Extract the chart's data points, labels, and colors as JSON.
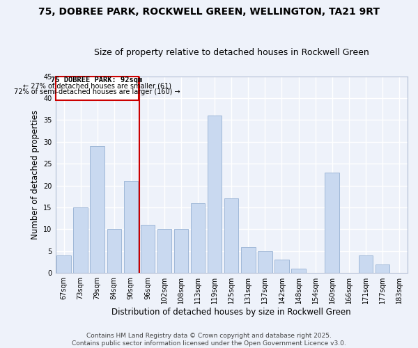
{
  "title": "75, DOBREE PARK, ROCKWELL GREEN, WELLINGTON, TA21 9RT",
  "subtitle": "Size of property relative to detached houses in Rockwell Green",
  "xlabel": "Distribution of detached houses by size in Rockwell Green",
  "ylabel": "Number of detached properties",
  "bin_labels": [
    "67sqm",
    "73sqm",
    "79sqm",
    "84sqm",
    "90sqm",
    "96sqm",
    "102sqm",
    "108sqm",
    "113sqm",
    "119sqm",
    "125sqm",
    "131sqm",
    "137sqm",
    "142sqm",
    "148sqm",
    "154sqm",
    "160sqm",
    "166sqm",
    "171sqm",
    "177sqm",
    "183sqm"
  ],
  "values": [
    4,
    15,
    29,
    10,
    21,
    11,
    10,
    10,
    16,
    36,
    17,
    6,
    5,
    3,
    1,
    0,
    23,
    0,
    4,
    2,
    0
  ],
  "bar_color": "#c9d9f0",
  "bar_edge_color": "#a0b8d8",
  "highlight_line_color": "#cc0000",
  "highlight_box_color": "#ffffff",
  "highlight_box_edge": "#cc0000",
  "highlight_label": "75 DOBREE PARK: 92sqm",
  "highlight_line1": "← 27% of detached houses are smaller (61)",
  "highlight_line2": "72% of semi-detached houses are larger (160) →",
  "ylim": [
    0,
    45
  ],
  "yticks": [
    0,
    5,
    10,
    15,
    20,
    25,
    30,
    35,
    40,
    45
  ],
  "footnote1": "Contains HM Land Registry data © Crown copyright and database right 2025.",
  "footnote2": "Contains public sector information licensed under the Open Government Licence v3.0.",
  "bg_color": "#eef2fa",
  "grid_color": "#ffffff",
  "title_fontsize": 10,
  "subtitle_fontsize": 9,
  "xlabel_fontsize": 8.5,
  "ylabel_fontsize": 8.5,
  "tick_fontsize": 7,
  "footnote_fontsize": 6.5
}
